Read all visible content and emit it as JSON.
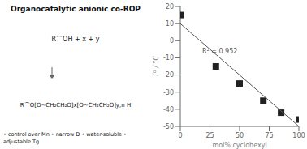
{
  "chart_data": {
    "type": "scatter",
    "title": "Organocatalytic anionic co-ROP",
    "xlabel": "mol% cyclohexyl",
    "ylabel": "Tᴳ / °C",
    "annotations": [
      "R² = 0.952",
      "R⌒OH + x + y",
      "R⌒O[O~CH₂CH₂O]x[O~CH₂CH₂O]y,n H",
      "• control over Mn • narrow Đ • water-soluble • adjustable Tg"
    ],
    "series": [
      {
        "type": "scatter",
        "color": "#222222",
        "marker": "square",
        "x": [
          0,
          30,
          50,
          70,
          85,
          100
        ],
        "values": [
          15,
          -15,
          -25,
          -35,
          -42,
          -46
        ]
      },
      {
        "type": "line",
        "color": "#555555",
        "x": [
          0,
          100
        ],
        "values": [
          10,
          -50
        ]
      }
    ],
    "xlim": [
      0,
      100
    ],
    "xticks": [
      0,
      25,
      50,
      75,
      100
    ],
    "ylim": [
      -50,
      20
    ],
    "yticks": [
      20,
      10,
      0,
      -10,
      -20,
      -30,
      -40,
      -50
    ],
    "grid": false
  }
}
